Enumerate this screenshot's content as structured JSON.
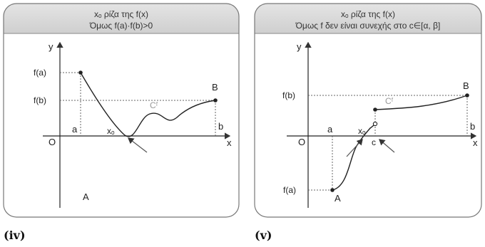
{
  "panels": [
    {
      "header_line1": "xₒ ρίζα της f(x)",
      "header_line2": "Όμως f(a)·f(b)>0",
      "caption": "(iv)",
      "labels": {
        "y": "y",
        "x": "x",
        "origin": "O",
        "fa": "f(a)",
        "fb": "f(b)",
        "a": "a",
        "b": "b",
        "xo": "xₒ",
        "curve": "Cᶠ",
        "point_B": "B",
        "point_A": "A"
      }
    },
    {
      "header_line1": "xₒ ρίζα της f(x)",
      "header_line2": "Όμως f δεν είναι συνεχής στο c∈[α, β]",
      "caption": "(v)",
      "labels": {
        "y": "y",
        "x": "x",
        "origin": "O",
        "fa": "f(a)",
        "fb": "f(b)",
        "a": "a",
        "b": "b",
        "xo": "xₒ",
        "c": "c",
        "curve": "Cᶠ",
        "point_B": "B",
        "point_A": "A"
      }
    }
  ]
}
